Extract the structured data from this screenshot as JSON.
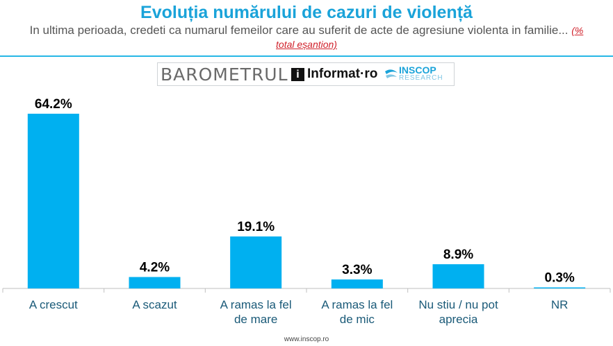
{
  "title": "Evoluția numărului de cazuri de violență",
  "subtitle": "In ultima perioada, credeti ca numarul femeilor care au suferit de acte de agresiune violenta in familie...",
  "subtitle_note": "(% total eșantion)",
  "brand": {
    "barometer": "BAROMETRUL",
    "i_mark": "i",
    "informat": "Informat·ro",
    "inscop": "INSCOP",
    "inscop_sub": "RESEARCH"
  },
  "footer": "www.inscop.ro",
  "colors": {
    "bar": "#00b0f0",
    "title": "#1aa3d9",
    "rule": "#26b7e6"
  },
  "chart_data": {
    "type": "bar",
    "categories": [
      "A crescut",
      "A scazut",
      "A ramas la fel de mare",
      "A ramas la fel de mic",
      "Nu stiu / nu pot aprecia",
      "NR"
    ],
    "category_lines": [
      [
        "A crescut"
      ],
      [
        "A scazut"
      ],
      [
        "A ramas la fel",
        "de mare"
      ],
      [
        "A ramas la fel",
        "de mic"
      ],
      [
        "Nu stiu / nu pot",
        "aprecia"
      ],
      [
        "NR"
      ]
    ],
    "values": [
      64.2,
      4.2,
      19.1,
      3.3,
      8.9,
      0.3
    ],
    "value_labels": [
      "64.2%",
      "4.2%",
      "19.1%",
      "3.3%",
      "8.9%",
      "0.3%"
    ],
    "ylim": [
      0,
      64.2
    ],
    "grid": false,
    "legend": false
  }
}
